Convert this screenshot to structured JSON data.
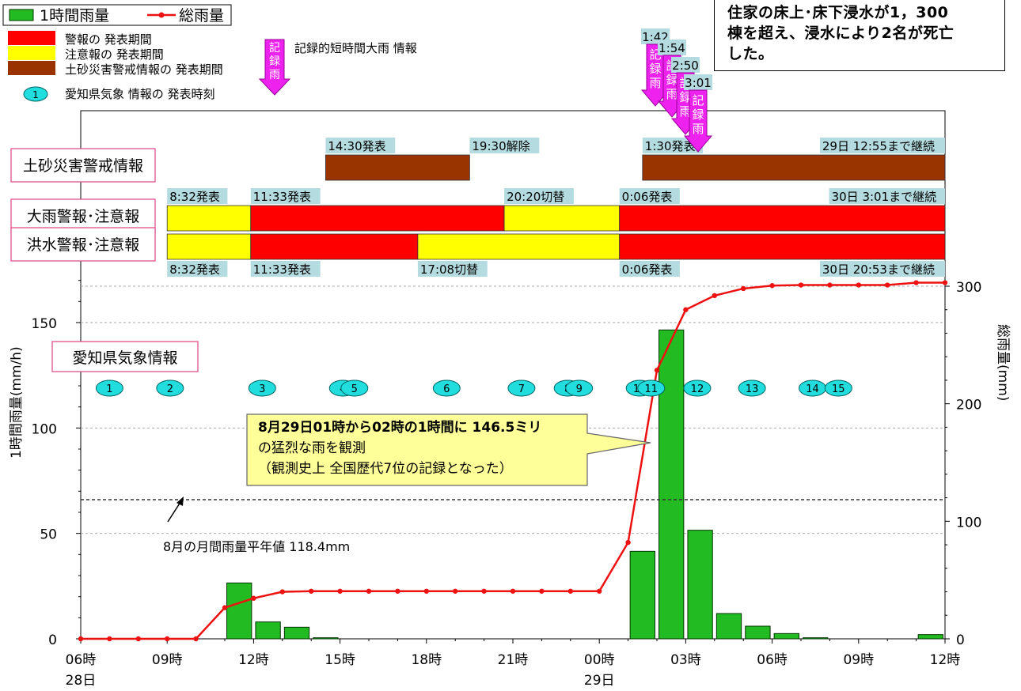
{
  "chart_data": {
    "type": "bar",
    "x_categories": [
      "06時\n28日",
      "",
      "",
      "09時",
      "",
      "",
      "12時",
      "",
      "",
      "15時",
      "",
      "",
      "18時",
      "",
      "",
      "21時",
      "",
      "",
      "00時\n29日",
      "",
      "",
      "03時",
      "",
      "",
      "06時",
      "",
      "",
      "09時",
      "",
      "",
      "12時"
    ],
    "x_tick_labels": [
      "06時",
      "09時",
      "12時",
      "15時",
      "18時",
      "21時",
      "00時",
      "03時",
      "06時",
      "09時",
      "12時"
    ],
    "day_labels": [
      "28日",
      "29日"
    ],
    "ylabel_left": "1時間雨量(mm/h)",
    "ylabel_right": "総雨量(mm)",
    "ylim_left": [
      0,
      180
    ],
    "ylim_right": [
      0,
      308
    ],
    "yticks_left": [
      "0",
      "50",
      "100",
      "150"
    ],
    "yticks_right": [
      "0",
      "100",
      "200",
      "300"
    ],
    "series": [
      {
        "name": "1時間雨量",
        "type": "bar",
        "axis": "left",
        "color": "#22bb22",
        "values": [
          0,
          0,
          0,
          0,
          0,
          26.5,
          8,
          5.5,
          0.5,
          0,
          0,
          0,
          0,
          0,
          0,
          0,
          0,
          0,
          0,
          41.5,
          146.5,
          51.5,
          12,
          6,
          2.5,
          0.5,
          0,
          0,
          0,
          2,
          0
        ]
      },
      {
        "name": "総雨量",
        "type": "line",
        "axis": "right",
        "color": "#ee1111",
        "values": [
          0,
          0,
          0,
          0,
          0,
          26.5,
          34.5,
          40,
          40.5,
          40.5,
          40.5,
          40.5,
          40.5,
          40.5,
          40.5,
          40.5,
          40.5,
          40.5,
          40.5,
          82,
          228.5,
          280,
          292,
          298,
          300.5,
          301,
          301,
          301,
          301,
          303,
          303
        ]
      }
    ],
    "reference_line": {
      "value": 118.4,
      "axis": "right",
      "label": "8月の月間雨量平年値 118.4mm"
    },
    "annotations": {
      "main_note": "8月29日01時から02時の1時間に 146.5ミリ\nの猛烈な雨を観測\n（観測史上 全国歴代7位の記録となった）",
      "damage_note": "住家の床上･床下浸水が1，300\n棟を超え、浸水により2名が死亡\nした。"
    },
    "timeline_rows": [
      {
        "label": "土砂災害警戒情報",
        "segments": [
          {
            "start": 8.5,
            "end": 13.5,
            "level": "landslide"
          },
          {
            "start": 19.5,
            "end": 30.0,
            "level": "landslide"
          }
        ],
        "notes_above": [
          {
            "x": 8.5,
            "text": "14:30発表"
          },
          {
            "x": 13.5,
            "text": "19:30解除"
          },
          {
            "x": 19.5,
            "text": "1:30発表"
          },
          {
            "x": 30.0,
            "text": "29日 12:55まで継続"
          }
        ]
      },
      {
        "label": "大雨警報･注意報",
        "segments": [
          {
            "start": 3.0,
            "end": 5.9,
            "level": "advisory"
          },
          {
            "start": 5.9,
            "end": 14.7,
            "level": "warning"
          },
          {
            "start": 14.7,
            "end": 18.7,
            "level": "advisory"
          },
          {
            "start": 18.7,
            "end": 30.0,
            "level": "warning"
          }
        ],
        "notes_above": [
          {
            "x": 3.0,
            "text": "8:32発表"
          },
          {
            "x": 5.9,
            "text": "11:33発表"
          },
          {
            "x": 14.7,
            "text": "20:20切替"
          },
          {
            "x": 18.7,
            "text": "0:06発表"
          },
          {
            "x": 30.0,
            "text": "30日 3:01まで継続"
          }
        ]
      },
      {
        "label": "洪水警報･注意報",
        "segments": [
          {
            "start": 3.0,
            "end": 5.9,
            "level": "advisory"
          },
          {
            "start": 5.9,
            "end": 11.7,
            "level": "warning"
          },
          {
            "start": 11.7,
            "end": 18.7,
            "level": "advisory"
          },
          {
            "start": 18.7,
            "end": 30.0,
            "level": "warning"
          }
        ],
        "notes_below": [
          {
            "x": 3.0,
            "text": "8:32発表"
          },
          {
            "x": 5.9,
            "text": "11:33発表"
          },
          {
            "x": 11.7,
            "text": "17:08切替"
          },
          {
            "x": 18.7,
            "text": "0:06発表"
          },
          {
            "x": 30.0,
            "text": "30日 20:53まで継続"
          }
        ]
      }
    ],
    "record_rain_arrows": [
      {
        "time": "1:42",
        "text": "記録雨"
      },
      {
        "time": "1:54",
        "text": "記録雨"
      },
      {
        "time": "2:50",
        "text": "記録雨"
      },
      {
        "time": "3:01",
        "text": "記録雨"
      }
    ],
    "aichi_info": {
      "label": "愛知県気象情報",
      "markers": [
        {
          "n": "1",
          "x": 1.0
        },
        {
          "n": "2",
          "x": 3.1
        },
        {
          "n": "3",
          "x": 6.3
        },
        {
          "n": "4",
          "x": 9.1
        },
        {
          "n": "5",
          "x": 9.5
        },
        {
          "n": "6",
          "x": 12.7
        },
        {
          "n": "7",
          "x": 15.3
        },
        {
          "n": "8",
          "x": 16.9
        },
        {
          "n": "9",
          "x": 17.3
        },
        {
          "n": "10",
          "x": 19.4
        },
        {
          "n": "11",
          "x": 19.8
        },
        {
          "n": "12",
          "x": 21.4
        },
        {
          "n": "13",
          "x": 23.3
        },
        {
          "n": "14",
          "x": 25.4
        },
        {
          "n": "15",
          "x": 26.3
        }
      ]
    },
    "legend": {
      "bar": "1時間雨量",
      "line": "総雨量",
      "warning": "警報の 発表期間",
      "advisory": "注意報の 発表期間",
      "landslide": "土砂災害警戒情報の 発表期間",
      "bubble_n": "1",
      "bubble": "愛知県気象 情報の 発表時刻",
      "record_arrow_text": "記録雨",
      "record": "記録的短時間大雨 情報"
    },
    "colors": {
      "bar": "#22bb22",
      "line": "#ee1111",
      "warning": "#ff0000",
      "advisory": "#ffff00",
      "landslide": "#993300",
      "note_bg": "#b4dce0",
      "bubble": "#22dddd",
      "arrow": "#ee22ee",
      "label_border": "#dd4488",
      "callout_bg": "#ffff99"
    }
  }
}
